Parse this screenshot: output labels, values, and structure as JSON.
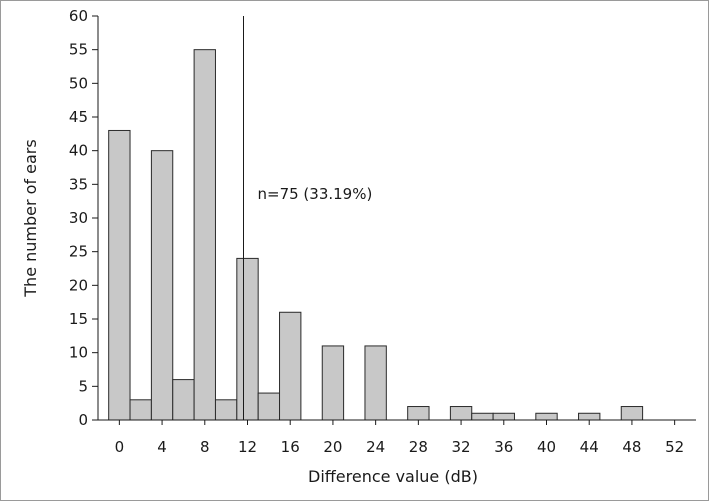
{
  "chart_data": {
    "type": "bar",
    "x": [
      0,
      2,
      4,
      6,
      8,
      10,
      12,
      14,
      16,
      20,
      24,
      28,
      32,
      34,
      36,
      40,
      44,
      48
    ],
    "values": [
      43,
      3,
      40,
      6,
      55,
      3,
      24,
      4,
      16,
      11,
      11,
      2,
      2,
      1,
      1,
      1,
      1,
      2
    ],
    "bin_width": 2,
    "xlabel": "Difference value (dB)",
    "ylabel": "The number of ears",
    "xticks": [
      0,
      4,
      8,
      12,
      16,
      20,
      24,
      28,
      32,
      36,
      40,
      44,
      48,
      52
    ],
    "yticks": [
      0,
      5,
      10,
      15,
      20,
      25,
      30,
      35,
      40,
      45,
      50,
      55,
      60
    ],
    "xlim": [
      -2,
      54
    ],
    "ylim": [
      0,
      60
    ],
    "reference_line_x": 12,
    "annotation": "n=75 (33.19%)",
    "bar_color": "#c8c8c8",
    "grid": false
  }
}
